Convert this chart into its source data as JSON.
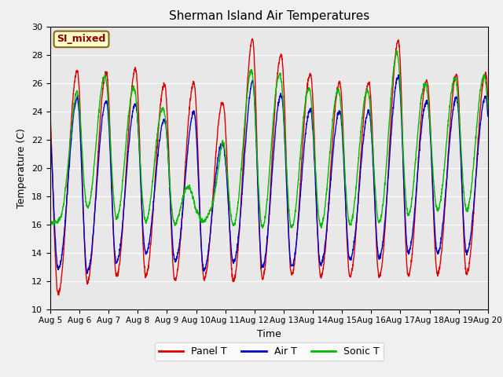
{
  "title": "Sherman Island Air Temperatures",
  "xlabel": "Time",
  "ylabel": "Temperature (C)",
  "ylim": [
    10,
    30
  ],
  "yticks": [
    10,
    12,
    14,
    16,
    18,
    20,
    22,
    24,
    26,
    28,
    30
  ],
  "annotation": "SI_mixed",
  "fig_bg": "#f0f0f0",
  "ax_bg": "#e8e8e8",
  "panel_color": "#dd0000",
  "air_color": "#0000cc",
  "sonic_color": "#00bb00",
  "legend_labels": [
    "Panel T",
    "Air T",
    "Sonic T"
  ],
  "start_day": 5,
  "end_day": 20,
  "points_per_day": 144,
  "panel_peaks": [
    25.3,
    27.0,
    26.7,
    27.0,
    25.8,
    26.0,
    24.5,
    29.5,
    27.8,
    26.5,
    26.0,
    26.0,
    29.3,
    25.8,
    26.7
  ],
  "panel_troughs": [
    10.8,
    11.8,
    12.3,
    12.5,
    12.0,
    12.2,
    12.0,
    12.0,
    12.5,
    12.3,
    12.3,
    12.3,
    12.3,
    12.5,
    12.5
  ],
  "air_peaks": [
    23.8,
    25.0,
    24.7,
    24.5,
    23.3,
    24.0,
    21.5,
    26.5,
    25.0,
    24.0,
    24.0,
    24.0,
    26.7,
    24.5,
    25.0
  ],
  "air_troughs": [
    13.0,
    12.5,
    13.0,
    14.0,
    13.8,
    12.5,
    13.5,
    13.0,
    13.0,
    13.0,
    13.5,
    13.5,
    14.0,
    14.0,
    14.0
  ],
  "sonic_peaks": [
    16.2,
    26.5,
    26.5,
    25.5,
    24.0,
    17.2,
    22.5,
    27.5,
    26.5,
    25.5,
    25.5,
    25.5,
    28.5,
    25.5,
    26.5
  ],
  "sonic_troughs": [
    16.0,
    17.5,
    16.5,
    16.3,
    16.0,
    16.0,
    16.0,
    15.8,
    15.8,
    15.8,
    16.0,
    16.0,
    16.5,
    17.0,
    17.0
  ],
  "sonic_plateau_days": [
    0,
    5
  ],
  "phase_shift": -0.27,
  "grid_color": "#ffffff",
  "tick_fontsize": 7.5,
  "label_fontsize": 9,
  "title_fontsize": 11,
  "line_width": 1.0,
  "legend_fontsize": 9
}
